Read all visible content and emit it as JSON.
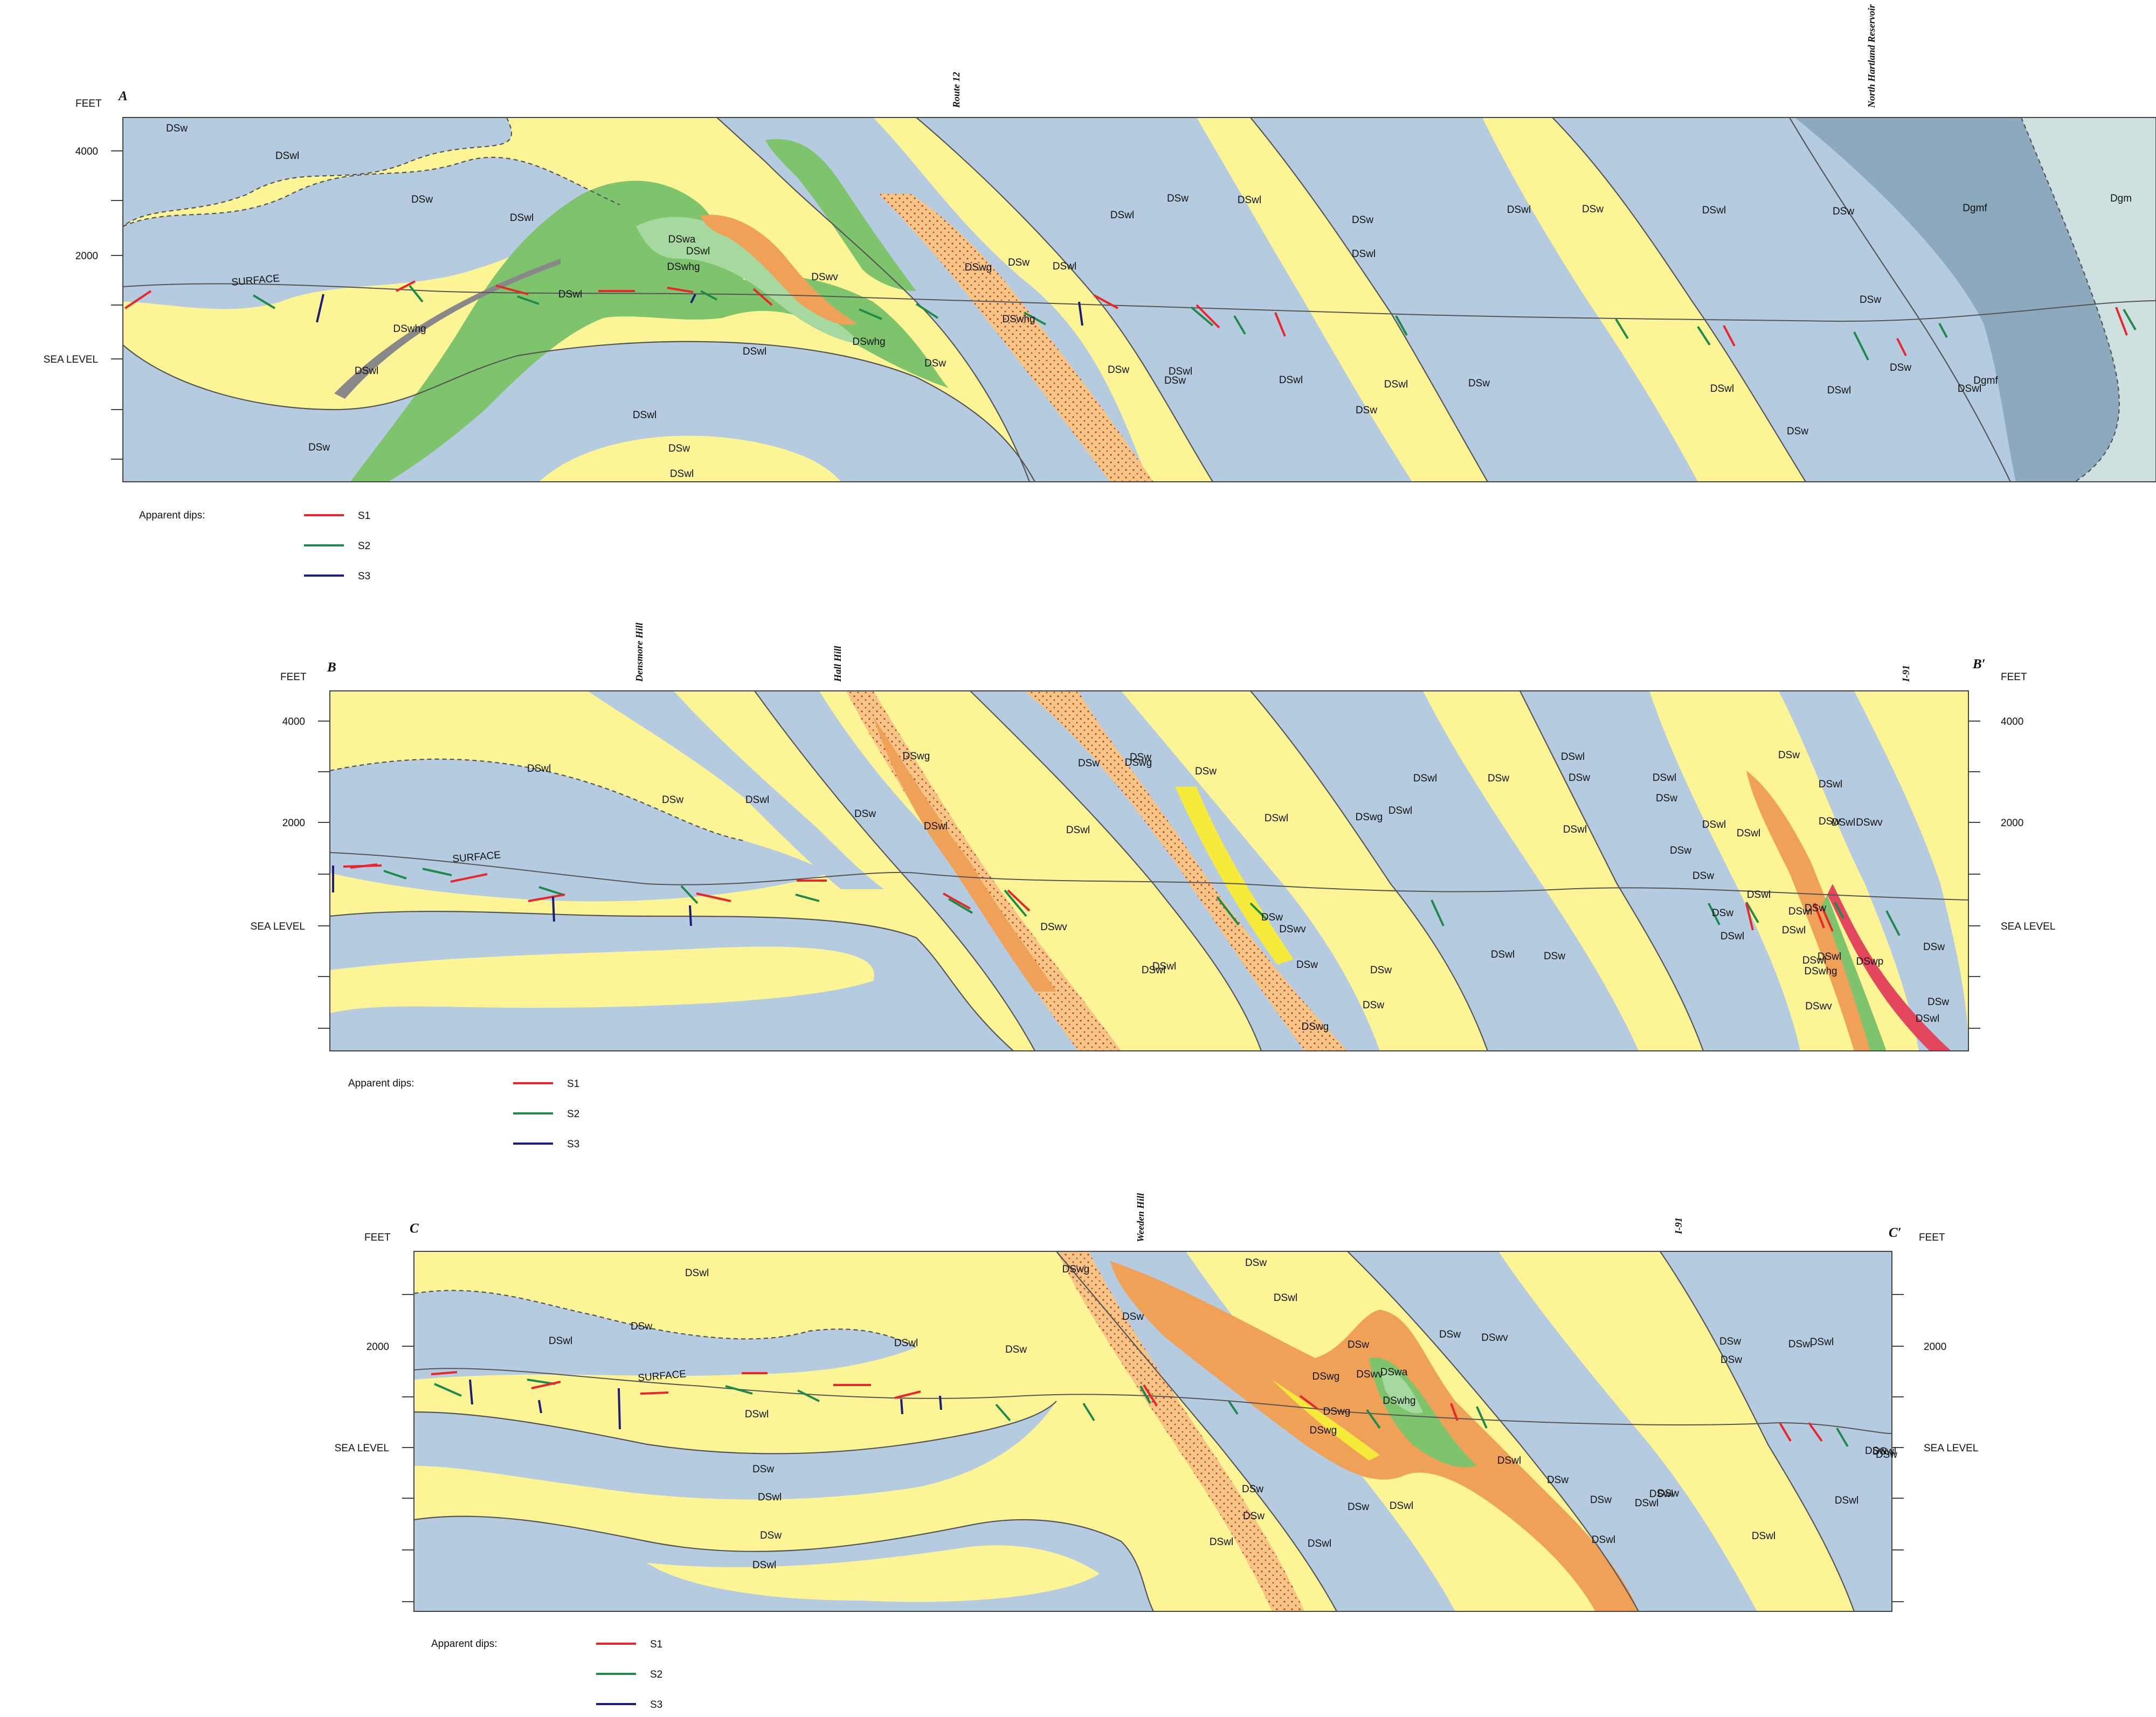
{
  "colors": {
    "DSw": "#b4cbe0",
    "DSwl": "#fdf496",
    "DSwg": "#f5c585",
    "DSwv": "#f0a158",
    "DSwhg": "#7ec46c",
    "DSwa": "#a6d9a0",
    "DSwp": "#e2475e",
    "Dgmf": "#8da9bd",
    "Dgm": "#cfe0e0",
    "S1": "#e8262b",
    "S2": "#1e8b4c",
    "S3": "#1c1f7a"
  },
  "sections": [
    {
      "id": "A",
      "label_left": "A",
      "label_right": "",
      "axis": {
        "unit": "FEET",
        "ticks": [
          "4000",
          "2000",
          "SEA LEVEL"
        ]
      },
      "axis_right": null,
      "places": [
        "Route 12",
        "North Hartland Reservoir"
      ],
      "surface_label": "SURFACE",
      "unit_labels": [
        "DSw",
        "DSwl",
        "DSw",
        "DSwl",
        "DSwa",
        "DSwl",
        "DSwhg",
        "DSwl",
        "DSwv",
        "DSwg",
        "DSw",
        "DSwl",
        "DSwhg",
        "DSwhg",
        "DSwl",
        "DSwl",
        "DSw",
        "DSwl",
        "DSw",
        "DSwl",
        "DSw",
        "DSw",
        "DSwhg",
        "DSwl",
        "DSw",
        "DSwl",
        "DSw",
        "DSwl",
        "DSwl",
        "DSw",
        "DSwl",
        "DSw",
        "DSwl",
        "DSw",
        "DSwl",
        "DSw",
        "DSwl",
        "DSw",
        "DSwl",
        "DSw",
        "DSw",
        "DSwl",
        "DSw",
        "DSwl",
        "Dgmf",
        "Dgm",
        "Dgmf"
      ],
      "legend": {
        "title": "Apparent dips:",
        "items": [
          "S1",
          "S2",
          "S3"
        ]
      }
    },
    {
      "id": "B",
      "label_left": "B",
      "label_right": "B′",
      "axis": {
        "unit": "FEET",
        "ticks": [
          "4000",
          "2000",
          "SEA LEVEL"
        ]
      },
      "axis_right": {
        "unit": "FEET",
        "ticks": [
          "4000",
          "2000",
          "SEA LEVEL"
        ]
      },
      "places": [
        "Densmore Hill",
        "Hall Hill",
        "I-91"
      ],
      "surface_label": "SURFACE",
      "unit_labels": [
        "DSwl",
        "DSw",
        "DSwl",
        "DSw",
        "DSwg",
        "DSwl",
        "DSw",
        "DSw",
        "DSwg",
        "DSw",
        "DSwl",
        "DSwl",
        "DSwl",
        "DSwv",
        "DSwl",
        "DSwl",
        "DSw",
        "DSwg",
        "DSw",
        "DSwl",
        "DSwg",
        "DSw",
        "DSwv",
        "DSw",
        "DSwl",
        "DSw",
        "DSwl",
        "DSwl",
        "DSw",
        "DSw",
        "DSwl",
        "DSw",
        "DSwl",
        "DSw",
        "DSwl",
        "DSw",
        "DSwl",
        "DSw",
        "DSwl",
        "DSwl",
        "DSwv",
        "DSw",
        "DSwl",
        "DSwl",
        "DSwv",
        "DSw",
        "DSwl",
        "DSwl",
        "DSwp",
        "DSw",
        "DSwhg",
        "DSwl",
        "DSw",
        "DSw",
        "DSwl"
      ],
      "legend": {
        "title": "Apparent dips:",
        "items": [
          "S1",
          "S2",
          "S3"
        ]
      }
    },
    {
      "id": "C",
      "label_left": "C",
      "label_right": "C′",
      "axis": {
        "unit": "FEET",
        "ticks": [
          "2000",
          "SEA LEVEL"
        ]
      },
      "axis_right": {
        "unit": "FEET",
        "ticks": [
          "2000",
          "SEA LEVEL"
        ]
      },
      "places": [
        "Weeden Hill",
        "I-91"
      ],
      "surface_label": "SURFACE",
      "unit_labels": [
        "DSwl",
        "DSwl",
        "DSw",
        "DSwl",
        "DSw",
        "DSwl",
        "DSw",
        "DSwl",
        "DSw",
        "DSwl",
        "DSwg",
        "DSw",
        "DSw",
        "DSwl",
        "DSw",
        "DSwv",
        "DSwa",
        "DSwg",
        "DSwg",
        "DSwhg",
        "DSwg",
        "DSw",
        "DSwl",
        "DSw",
        "DSwl",
        "DSw",
        "DSwl",
        "DSw",
        "DSwv",
        "DSwl",
        "DSw",
        "DSwl",
        "DSw",
        "DSwl",
        "DSwl",
        "DSw",
        "DSwl",
        "DSw",
        "DSw",
        "DSwl",
        "DSwl",
        "DSwl",
        "DSw",
        "DSwl",
        "DSw"
      ],
      "legend": {
        "title": "Apparent dips:",
        "items": [
          "S1",
          "S2",
          "S3"
        ]
      }
    }
  ]
}
